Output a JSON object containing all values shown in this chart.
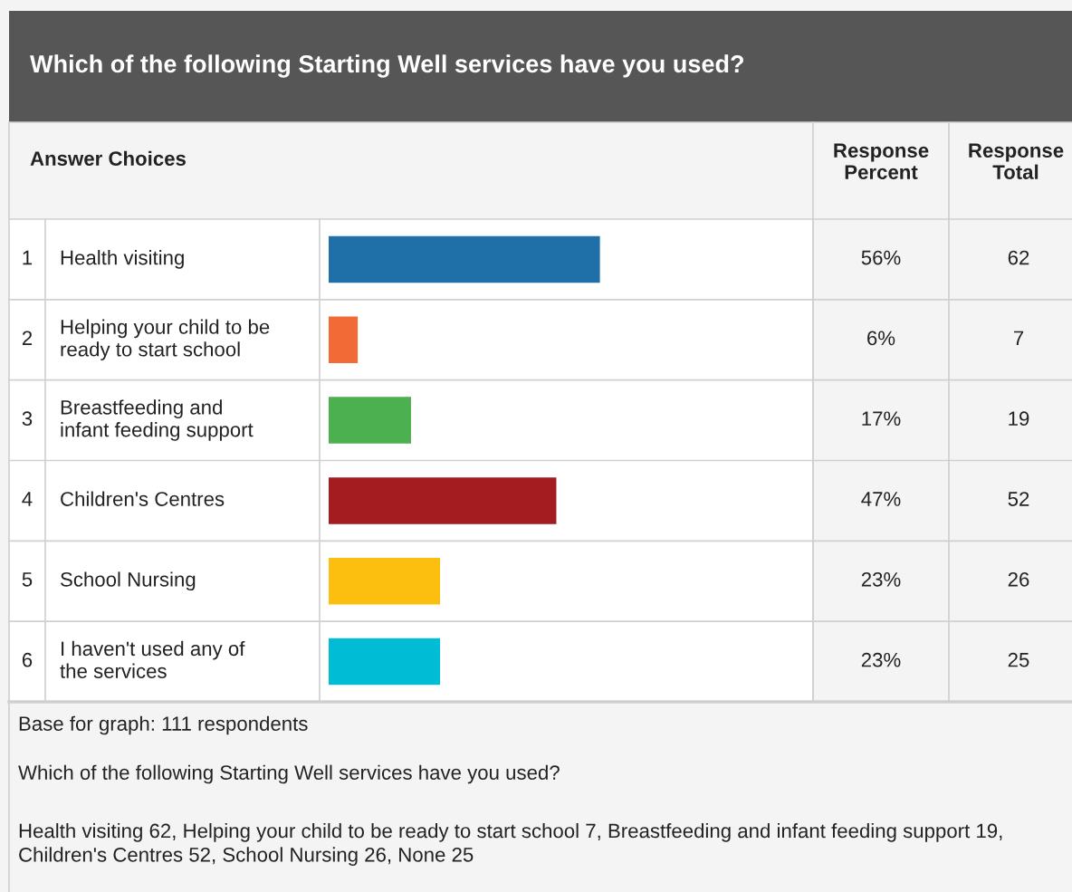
{
  "chart_data": {
    "type": "bar",
    "orientation": "horizontal",
    "title": "Which of the following Starting Well services have you used?",
    "categories": [
      "Health visiting",
      "Helping your child to be\nready to start school",
      "Breastfeeding and\ninfant feeding support",
      "Children's Centres",
      "School Nursing",
      "I haven't used any of\nthe services"
    ],
    "values": [
      56,
      6,
      17,
      47,
      23,
      23
    ],
    "colors": [
      "#1f6fa8",
      "#f26a35",
      "#4caf50",
      "#a31c1f",
      "#fdbf0f",
      "#00bcd4"
    ],
    "value_labels": [
      "56%",
      "6%",
      "17%",
      "47%",
      "23%",
      "23%"
    ],
    "xlim": [
      0,
      100
    ],
    "annotations": [
      "Answer Choices",
      "Response\nPercent",
      "Response\nTotal",
      "1",
      "2",
      "3",
      "4",
      "5",
      "6",
      "62",
      "7",
      "19",
      "52",
      "26",
      "25",
      "Base for graph: 111 respondents",
      "Which of the following Starting Well services have you used?",
      "Health visiting 62, Helping your child to be ready to start school 7, Breastfeeding and infant feeding support 19, Children's Centres 52, School Nursing 26, None 25"
    ]
  }
}
